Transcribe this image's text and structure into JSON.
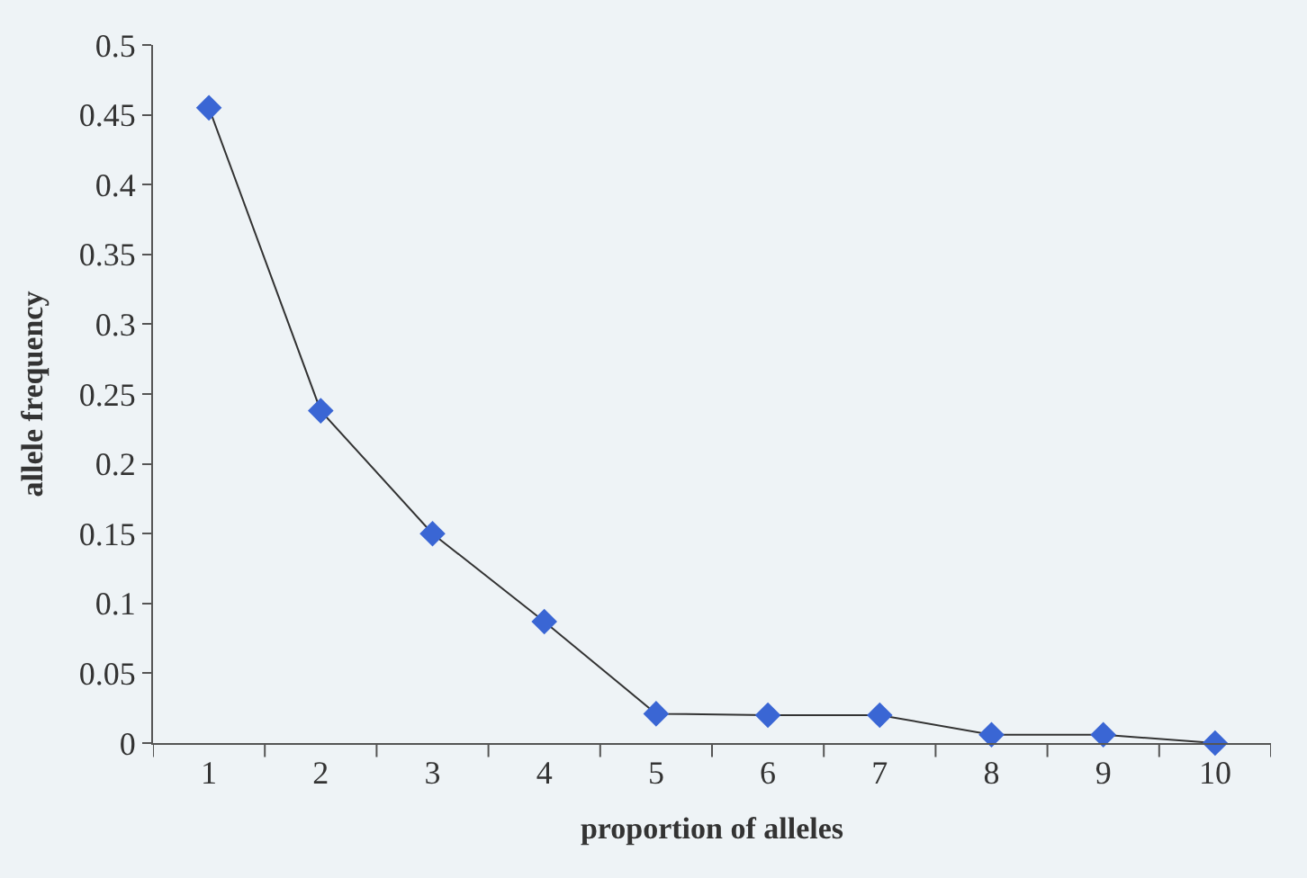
{
  "chart_data": {
    "type": "line",
    "xlabel": "proportion of alleles",
    "ylabel": "allele frequency",
    "categories": [
      "1",
      "2",
      "3",
      "4",
      "5",
      "6",
      "7",
      "8",
      "9",
      "10"
    ],
    "series": [
      {
        "color": "#3a66d4",
        "values": [
          0.455,
          0.238,
          0.15,
          0.087,
          0.021,
          0.02,
          0.02,
          0.006,
          0.006,
          0
        ]
      }
    ],
    "ylim": [
      0,
      0.5
    ],
    "yticks": [
      0,
      0.05,
      0.1,
      0.15,
      0.2,
      0.25,
      0.3,
      0.35,
      0.4,
      0.45,
      0.5
    ],
    "grid": false,
    "marker": "diamond",
    "line_style": "solid"
  }
}
